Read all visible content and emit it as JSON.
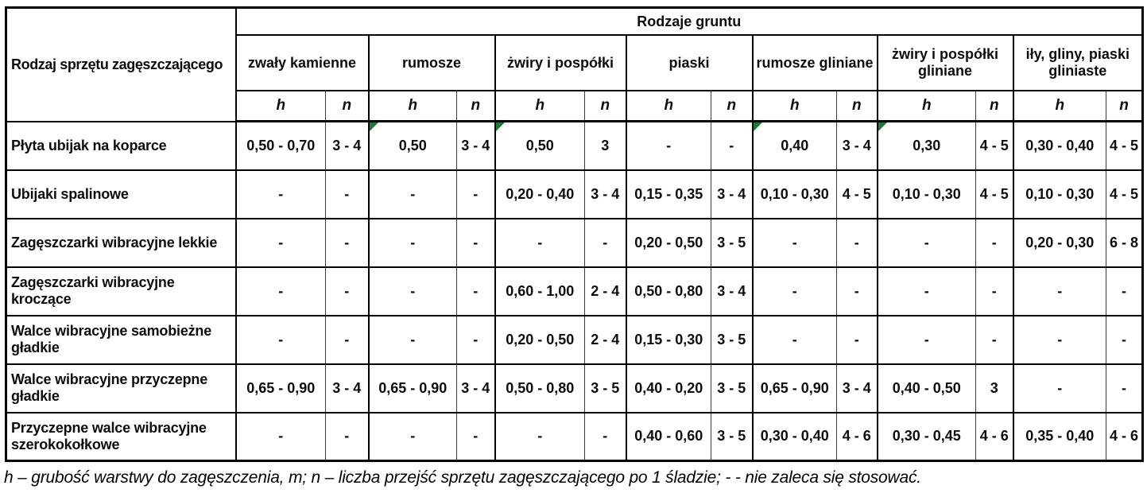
{
  "table": {
    "corner_header": "Rodzaj sprzętu zagęszczającego",
    "group_header": "Rodzaje gruntu",
    "sub_h": "h",
    "sub_n": "n",
    "soil_types": [
      "zwały kamienne",
      "rumosze",
      "żwiry i pospółki",
      "piaski",
      "rumosze gliniane",
      "żwiry i pospółki gliniane",
      "iły, gliny, piaski gliniaste"
    ],
    "rows": [
      {
        "label": "Płyta ubijak na koparce",
        "cells": [
          {
            "h": "0,50 - 0,70",
            "n": "3 - 4"
          },
          {
            "h": "0,50",
            "n": "3 - 4",
            "flag": true
          },
          {
            "h": "0,50",
            "n": "3",
            "flag": true
          },
          {
            "h": "-",
            "n": "-"
          },
          {
            "h": "0,40",
            "n": "3 - 4",
            "flag": true
          },
          {
            "h": "0,30",
            "n": "4 - 5",
            "flag": true
          },
          {
            "h": "0,30 - 0,40",
            "n": "4 - 5"
          }
        ]
      },
      {
        "label": "Ubijaki spalinowe",
        "cells": [
          {
            "h": "-",
            "n": "-"
          },
          {
            "h": "-",
            "n": "-"
          },
          {
            "h": "0,20 - 0,40",
            "n": "3 - 4"
          },
          {
            "h": "0,15 - 0,35",
            "n": "3 - 4"
          },
          {
            "h": "0,10 - 0,30",
            "n": "4 - 5"
          },
          {
            "h": "0,10 - 0,30",
            "n": "4 - 5"
          },
          {
            "h": "0,10 - 0,30",
            "n": "4 - 5"
          }
        ]
      },
      {
        "label": "Zagęszczarki wibracyjne lekkie",
        "cells": [
          {
            "h": "-",
            "n": "-"
          },
          {
            "h": "-",
            "n": "-"
          },
          {
            "h": "-",
            "n": "-"
          },
          {
            "h": "0,20 - 0,50",
            "n": "3 - 5"
          },
          {
            "h": "-",
            "n": "-"
          },
          {
            "h": "-",
            "n": "-"
          },
          {
            "h": "0,20 - 0,30",
            "n": "6 - 8"
          }
        ]
      },
      {
        "label": "Zagęszczarki wibracyjne kroczące",
        "cells": [
          {
            "h": "-",
            "n": "-"
          },
          {
            "h": "-",
            "n": "-"
          },
          {
            "h": "0,60 - 1,00",
            "n": "2 - 4"
          },
          {
            "h": "0,50 - 0,80",
            "n": "3 - 4"
          },
          {
            "h": "-",
            "n": "-"
          },
          {
            "h": "-",
            "n": "-"
          },
          {
            "h": "-",
            "n": "-"
          }
        ]
      },
      {
        "label": "Walce wibracyjne samobieżne gładkie",
        "cells": [
          {
            "h": "-",
            "n": "-"
          },
          {
            "h": "-",
            "n": "-"
          },
          {
            "h": "0,20 - 0,50",
            "n": "2 - 4"
          },
          {
            "h": "0,15 - 0,30",
            "n": "3 - 5"
          },
          {
            "h": "-",
            "n": "-"
          },
          {
            "h": "-",
            "n": "-"
          },
          {
            "h": "-",
            "n": "-"
          }
        ]
      },
      {
        "label": "Walce wibracyjne przyczepne gładkie",
        "cells": [
          {
            "h": "0,65 - 0,90",
            "n": "3 - 4"
          },
          {
            "h": "0,65 - 0,90",
            "n": "3 - 4"
          },
          {
            "h": "0,50 - 0,80",
            "n": "3 - 5"
          },
          {
            "h": "0,40 - 0,20",
            "n": "3 - 5"
          },
          {
            "h": "0,65 - 0,90",
            "n": "3 - 4"
          },
          {
            "h": "0,40 - 0,50",
            "n": "3"
          },
          {
            "h": "-",
            "n": "-"
          }
        ]
      },
      {
        "label": "Przyczepne walce wibracyjne szerokokołkowe",
        "cells": [
          {
            "h": "-",
            "n": "-"
          },
          {
            "h": "-",
            "n": "-"
          },
          {
            "h": "-",
            "n": "-"
          },
          {
            "h": "0,40 - 0,60",
            "n": "3 - 5"
          },
          {
            "h": "0,30 - 0,40",
            "n": "4 - 6"
          },
          {
            "h": "0,30 - 0,45",
            "n": "4 - 6"
          },
          {
            "h": "0,35 - 0,40",
            "n": "4 - 6"
          }
        ]
      }
    ]
  },
  "footnote": "h – grubość warstwy do zagęszczenia, m; n – liczba przejść sprzętu zagęszczającego po 1 śladzie; - - nie zaleca się stosować.",
  "colors": {
    "flag_triangle": "#1e7a34",
    "border": "#000000",
    "background": "#ffffff"
  }
}
